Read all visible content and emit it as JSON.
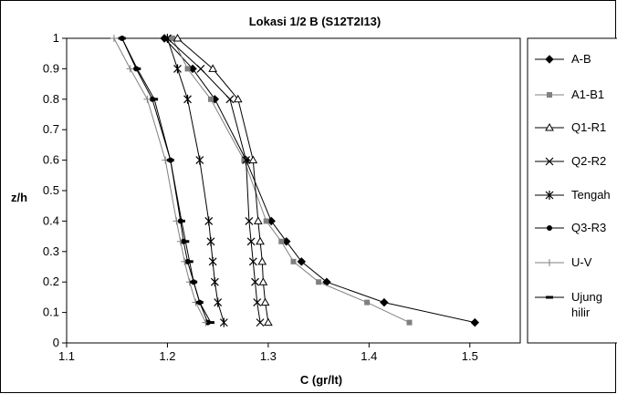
{
  "chart_data": {
    "type": "line",
    "title": "Lokasi 1/2 B (S12T2I13)",
    "xlabel": "C (gr/lt)",
    "ylabel": "z/h",
    "xlim": [
      1.1,
      1.55
    ],
    "ylim": [
      0,
      1
    ],
    "xticks": [
      "1.1",
      "1.2",
      "1.3",
      "1.4",
      "1.5"
    ],
    "yticks": [
      "0",
      "0.1",
      "0.2",
      "0.3",
      "0.4",
      "0.5",
      "0.6",
      "0.7",
      "0.8",
      "0.9",
      "1"
    ],
    "grid": false,
    "legend_position": "right",
    "series": [
      {
        "name": "A-B",
        "marker": "diamond",
        "color": "#000000",
        "x": [
          1.505,
          1.415,
          1.358,
          1.333,
          1.318,
          1.303,
          1.278,
          1.247,
          1.225,
          1.197
        ],
        "y": [
          0.067,
          0.133,
          0.2,
          0.267,
          0.333,
          0.4,
          0.6,
          0.8,
          0.9,
          1.0
        ]
      },
      {
        "name": "A1-B1",
        "marker": "square",
        "color": "#808080",
        "x": [
          1.44,
          1.398,
          1.35,
          1.325,
          1.313,
          1.298,
          1.276,
          1.243,
          1.22,
          1.205
        ],
        "y": [
          0.067,
          0.133,
          0.2,
          0.267,
          0.333,
          0.4,
          0.6,
          0.8,
          0.9,
          1.0
        ]
      },
      {
        "name": "Q1-R1",
        "marker": "triangle",
        "color": "#000000",
        "x": [
          1.3,
          1.297,
          1.295,
          1.294,
          1.292,
          1.29,
          1.285,
          1.27,
          1.245,
          1.21
        ],
        "y": [
          0.067,
          0.133,
          0.2,
          0.267,
          0.333,
          0.4,
          0.6,
          0.8,
          0.9,
          1.0
        ]
      },
      {
        "name": "Q2-R2",
        "marker": "x",
        "color": "#000000",
        "x": [
          1.292,
          1.289,
          1.287,
          1.285,
          1.283,
          1.281,
          1.278,
          1.262,
          1.233,
          1.2
        ],
        "y": [
          0.067,
          0.133,
          0.2,
          0.267,
          0.333,
          0.4,
          0.6,
          0.8,
          0.9,
          1.0
        ]
      },
      {
        "name": "Tengah",
        "marker": "asterisk",
        "color": "#000000",
        "x": [
          1.256,
          1.25,
          1.247,
          1.245,
          1.243,
          1.241,
          1.232,
          1.22,
          1.21,
          1.2
        ],
        "y": [
          0.067,
          0.133,
          0.2,
          0.267,
          0.333,
          0.4,
          0.6,
          0.8,
          0.9,
          1.0
        ]
      },
      {
        "name": "Q3-R3",
        "marker": "circle",
        "color": "#000000",
        "x": [
          1.24,
          1.232,
          1.226,
          1.22,
          1.216,
          1.213,
          1.203,
          1.185,
          1.169,
          1.155
        ],
        "y": [
          0.067,
          0.133,
          0.2,
          0.267,
          0.333,
          0.4,
          0.6,
          0.8,
          0.9,
          1.0
        ]
      },
      {
        "name": "U-V",
        "marker": "plus",
        "color": "#808080",
        "x": [
          1.238,
          1.228,
          1.222,
          1.217,
          1.213,
          1.209,
          1.198,
          1.18,
          1.163,
          1.147
        ],
        "y": [
          0.067,
          0.133,
          0.2,
          0.267,
          0.333,
          0.4,
          0.6,
          0.8,
          0.9,
          1.0
        ]
      },
      {
        "name": "Ujung hilir",
        "marker": "dash",
        "color": "#000000",
        "x": [
          1.243,
          1.232,
          1.226,
          1.222,
          1.218,
          1.214,
          1.203,
          1.187,
          1.17,
          1.155
        ],
        "y": [
          0.067,
          0.133,
          0.2,
          0.267,
          0.333,
          0.4,
          0.6,
          0.8,
          0.9,
          1.0
        ]
      }
    ]
  }
}
